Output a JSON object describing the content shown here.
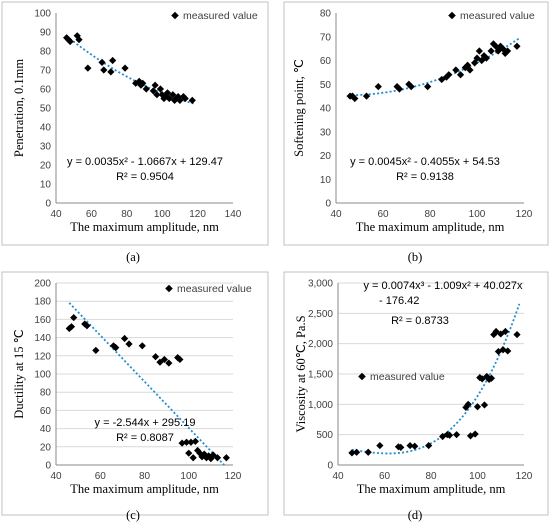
{
  "colors": {
    "trendline": "#1f8fd1",
    "marker": "#000000",
    "frame": "#c0c0c0"
  },
  "chart_data": [
    {
      "panel": "(a)",
      "type": "scatter",
      "xlabel": "The maximum amplitude, nm",
      "ylabel": "Penetration, 0.1mm",
      "xlim": [
        40,
        140
      ],
      "ylim": [
        0,
        100
      ],
      "xticks": [
        "40",
        "60",
        "80",
        "100",
        "120",
        "140"
      ],
      "yticks": [
        "0",
        "10",
        "20",
        "30",
        "40",
        "50",
        "60",
        "70",
        "80",
        "90",
        "100"
      ],
      "legend": "measured value",
      "legend_position": "top-right",
      "grid": false,
      "equation": "y = 0.0035x² - 1.0667x + 129.47",
      "r2": "R² = 0.9504",
      "trend": {
        "kind": "poly",
        "coef": [
          129.47,
          -1.0667,
          0.0035
        ],
        "xrange": [
          46,
          118
        ]
      },
      "points": [
        [
          46,
          87
        ],
        [
          47,
          86
        ],
        [
          48,
          85
        ],
        [
          52,
          88
        ],
        [
          53,
          86
        ],
        [
          58,
          71
        ],
        [
          66,
          74
        ],
        [
          67,
          70
        ],
        [
          71,
          69
        ],
        [
          72,
          75
        ],
        [
          79,
          71
        ],
        [
          85,
          63
        ],
        [
          87,
          64
        ],
        [
          88,
          62
        ],
        [
          89,
          63
        ],
        [
          91,
          60
        ],
        [
          95,
          59
        ],
        [
          96,
          62
        ],
        [
          97,
          57
        ],
        [
          99,
          60
        ],
        [
          100,
          57
        ],
        [
          101,
          55
        ],
        [
          102,
          56
        ],
        [
          103,
          58
        ],
        [
          104,
          55
        ],
        [
          106,
          57
        ],
        [
          107,
          54
        ],
        [
          108,
          55
        ],
        [
          109,
          56
        ],
        [
          110,
          54
        ],
        [
          112,
          56
        ],
        [
          113,
          55
        ],
        [
          117,
          54
        ]
      ]
    },
    {
      "panel": "(b)",
      "type": "scatter",
      "xlabel": "The maximum amplitude, nm",
      "ylabel": "Softening point, ℃",
      "xlim": [
        40,
        120
      ],
      "ylim": [
        0,
        80
      ],
      "xticks": [
        "40",
        "60",
        "80",
        "100",
        "120"
      ],
      "yticks": [
        "0",
        "10",
        "20",
        "30",
        "40",
        "50",
        "60",
        "70",
        "80"
      ],
      "legend": "measured value",
      "legend_position": "top-right",
      "grid": false,
      "equation": "y = 0.0045x² - 0.4055x + 54.53",
      "r2": "R² = 0.9138",
      "trend": {
        "kind": "poly",
        "coef": [
          54.53,
          -0.4055,
          0.0045
        ],
        "xrange": [
          45,
          118
        ]
      },
      "points": [
        [
          46,
          45
        ],
        [
          47,
          45
        ],
        [
          48,
          44
        ],
        [
          53,
          45
        ],
        [
          58,
          49
        ],
        [
          66,
          49
        ],
        [
          67,
          48
        ],
        [
          71,
          50
        ],
        [
          72,
          49
        ],
        [
          79,
          49
        ],
        [
          85,
          52
        ],
        [
          87,
          53
        ],
        [
          88,
          54
        ],
        [
          91,
          56
        ],
        [
          93,
          54
        ],
        [
          95,
          57
        ],
        [
          96,
          58
        ],
        [
          97,
          56
        ],
        [
          99,
          59
        ],
        [
          100,
          61
        ],
        [
          101,
          64
        ],
        [
          102,
          60
        ],
        [
          103,
          62
        ],
        [
          104,
          61
        ],
        [
          106,
          64
        ],
        [
          107,
          67
        ],
        [
          108,
          66
        ],
        [
          109,
          64
        ],
        [
          110,
          66
        ],
        [
          111,
          65
        ],
        [
          112,
          63
        ],
        [
          113,
          64
        ],
        [
          117,
          66
        ]
      ]
    },
    {
      "panel": "(c)",
      "type": "scatter",
      "xlabel": "The maximum amplitude, nm",
      "ylabel": "Ductility at 15 ℃",
      "xlim": [
        40,
        120
      ],
      "ylim": [
        0,
        200
      ],
      "xticks": [
        "40",
        "60",
        "80",
        "100",
        "120"
      ],
      "yticks": [
        "0",
        "20",
        "40",
        "60",
        "80",
        "100",
        "120",
        "140",
        "160",
        "180",
        "200"
      ],
      "legend": "measured value",
      "legend_position": "top-right",
      "grid": true,
      "equation": "y = -2.544x + 295.19",
      "r2": "R² = 0.8087",
      "trend": {
        "kind": "poly",
        "coef": [
          295.19,
          -2.544
        ],
        "xrange": [
          46,
          116
        ]
      },
      "points": [
        [
          46,
          150
        ],
        [
          47,
          152
        ],
        [
          48,
          162
        ],
        [
          53,
          155
        ],
        [
          54,
          153
        ],
        [
          58,
          126
        ],
        [
          66,
          131
        ],
        [
          67,
          129
        ],
        [
          71,
          139
        ],
        [
          73,
          133
        ],
        [
          79,
          131
        ],
        [
          85,
          119
        ],
        [
          87,
          113
        ],
        [
          89,
          116
        ],
        [
          91,
          112
        ],
        [
          95,
          118
        ],
        [
          96,
          116
        ],
        [
          97,
          24
        ],
        [
          99,
          25
        ],
        [
          100,
          13
        ],
        [
          101,
          25
        ],
        [
          102,
          8
        ],
        [
          103,
          26
        ],
        [
          104,
          16
        ],
        [
          105,
          13
        ],
        [
          106,
          9
        ],
        [
          107,
          12
        ],
        [
          108,
          8
        ],
        [
          109,
          10
        ],
        [
          110,
          7
        ],
        [
          111,
          11
        ],
        [
          113,
          8
        ],
        [
          117,
          8
        ]
      ]
    },
    {
      "panel": "(d)",
      "type": "scatter",
      "xlabel": "The maximum amplitude, nm",
      "ylabel": "Viscosity at 60℃, Pa.S",
      "xlim": [
        40,
        120
      ],
      "ylim": [
        0,
        3000
      ],
      "xticks": [
        "40",
        "60",
        "80",
        "100",
        "120"
      ],
      "yticks": [
        "0",
        "500",
        "1,000",
        "1,500",
        "2,000",
        "2,500",
        "3,000"
      ],
      "legend": "measured value",
      "legend_position": "middle-left",
      "grid": true,
      "equation_line1": "y = 0.0074x³ - 1.009x² + 40.027x",
      "equation_line2": "- 176.42",
      "r2": "R² = 0.8733",
      "trend": {
        "kind": "poly",
        "coef": [
          -176.42,
          40.027,
          -1.009,
          0.0074
        ],
        "xrange": [
          46,
          118
        ]
      },
      "points": [
        [
          46,
          200
        ],
        [
          48,
          210
        ],
        [
          53,
          210
        ],
        [
          58,
          320
        ],
        [
          66,
          300
        ],
        [
          67,
          290
        ],
        [
          71,
          320
        ],
        [
          73,
          310
        ],
        [
          79,
          320
        ],
        [
          85,
          470
        ],
        [
          87,
          500
        ],
        [
          88,
          490
        ],
        [
          91,
          500
        ],
        [
          95,
          950
        ],
        [
          96,
          1000
        ],
        [
          97,
          480
        ],
        [
          99,
          510
        ],
        [
          100,
          960
        ],
        [
          101,
          1440
        ],
        [
          102,
          1420
        ],
        [
          103,
          990
        ],
        [
          104,
          1460
        ],
        [
          105,
          1410
        ],
        [
          106,
          1430
        ],
        [
          107,
          2150
        ],
        [
          108,
          2200
        ],
        [
          109,
          1870
        ],
        [
          110,
          2160
        ],
        [
          111,
          1900
        ],
        [
          112,
          2200
        ],
        [
          113,
          1880
        ],
        [
          117,
          2150
        ]
      ]
    }
  ]
}
